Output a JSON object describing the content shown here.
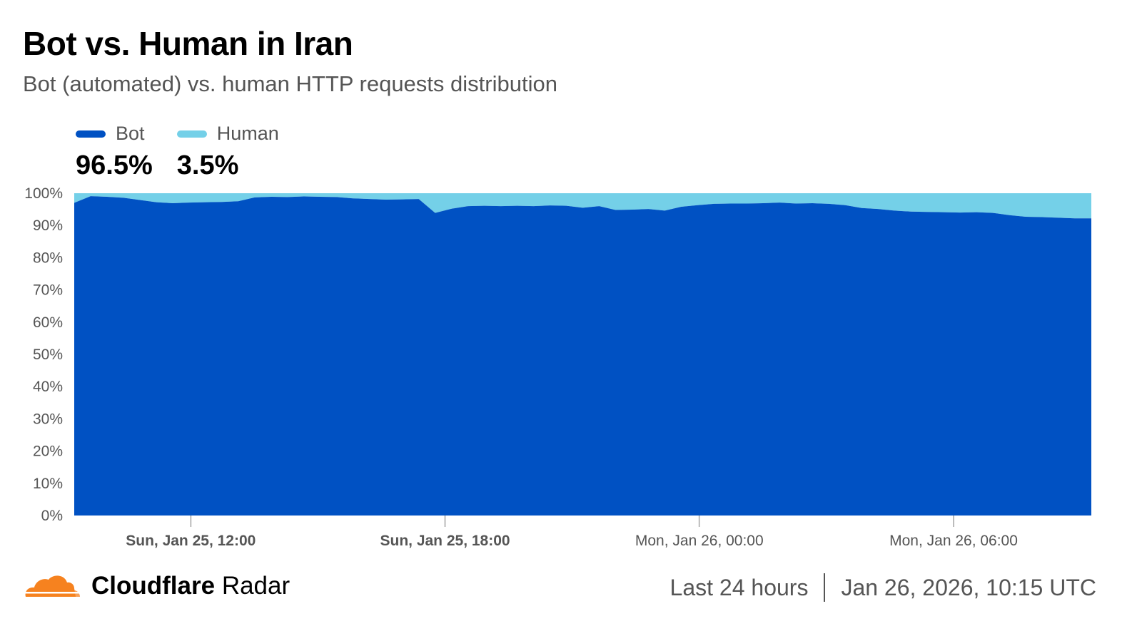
{
  "header": {
    "title": "Bot vs. Human in Iran",
    "subtitle": "Bot (automated) vs. human HTTP requests distribution"
  },
  "legend": [
    {
      "name": "Bot",
      "value": "96.5%",
      "color": "#0051c3"
    },
    {
      "name": "Human",
      "value": "3.5%",
      "color": "#74d0e8"
    }
  ],
  "footer": {
    "brand_bold": "Cloudflare",
    "brand_light": "Radar",
    "range": "Last 24 hours",
    "timestamp": "Jan 26, 2026, 10:15 UTC",
    "logo_color": "#f6821f"
  },
  "chart_data": {
    "type": "area",
    "stacked": true,
    "normalized": true,
    "y_ticks": [
      "0%",
      "10%",
      "20%",
      "30%",
      "40%",
      "50%",
      "60%",
      "70%",
      "80%",
      "90%",
      "100%"
    ],
    "ylim": [
      0,
      100
    ],
    "x_start": "Sun, Jan 25, 09:15",
    "x_end": "Mon, Jan 26, 09:15",
    "x_ticks": [
      {
        "label": "Sun, Jan 25, 12:00",
        "bold": true
      },
      {
        "label": "Sun, Jan 25, 18:00",
        "bold": true
      },
      {
        "label": "Mon, Jan 26, 00:00",
        "bold": false
      },
      {
        "label": "Mon, Jan 26, 06:00",
        "bold": false
      }
    ],
    "series": [
      {
        "name": "Bot",
        "color": "#0051c3",
        "values": [
          97.0,
          99.1,
          98.9,
          98.6,
          97.9,
          97.2,
          96.9,
          97.1,
          97.2,
          97.3,
          97.5,
          98.7,
          98.9,
          98.8,
          99.0,
          98.9,
          98.8,
          98.4,
          98.2,
          98.0,
          98.1,
          98.2,
          93.9,
          95.2,
          96.0,
          96.1,
          96.0,
          96.1,
          96.0,
          96.2,
          96.1,
          95.5,
          96.0,
          94.8,
          94.9,
          95.1,
          94.6,
          95.8,
          96.3,
          96.7,
          96.8,
          96.8,
          96.9,
          97.1,
          96.8,
          96.9,
          96.7,
          96.3,
          95.4,
          95.1,
          94.6,
          94.3,
          94.2,
          94.1,
          94.0,
          94.1,
          93.9,
          93.2,
          92.7,
          92.6,
          92.4,
          92.2,
          92.2
        ]
      },
      {
        "name": "Human",
        "color": "#74d0e8",
        "values": [
          3.0,
          0.9,
          1.1,
          1.4,
          2.1,
          2.8,
          3.1,
          2.9,
          2.8,
          2.7,
          2.5,
          1.3,
          1.1,
          1.2,
          1.0,
          1.1,
          1.2,
          1.6,
          1.8,
          2.0,
          1.9,
          1.8,
          6.1,
          4.8,
          4.0,
          3.9,
          4.0,
          3.9,
          4.0,
          3.8,
          3.9,
          4.5,
          4.0,
          5.2,
          5.1,
          4.9,
          5.4,
          4.2,
          3.7,
          3.3,
          3.2,
          3.2,
          3.1,
          2.9,
          3.2,
          3.1,
          3.3,
          3.7,
          4.6,
          4.9,
          5.4,
          5.7,
          5.8,
          5.9,
          6.0,
          5.9,
          6.1,
          6.8,
          7.3,
          7.4,
          7.6,
          7.8,
          7.8
        ]
      }
    ],
    "grid": false,
    "legend_position": "top-left"
  }
}
